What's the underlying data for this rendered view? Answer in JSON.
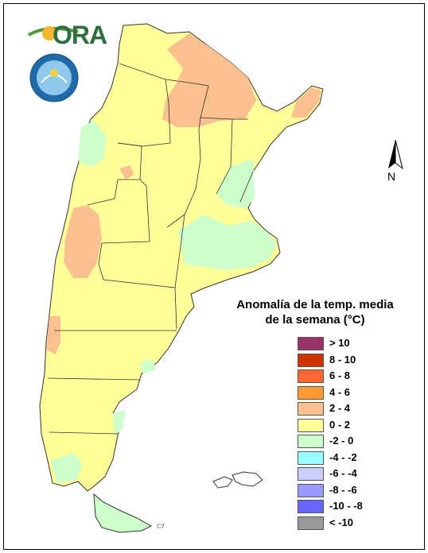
{
  "logo": {
    "text": "ORA"
  },
  "north_label": "N",
  "legend": {
    "title_line1": "Anomalía de la temp. media",
    "title_line2": "de la semana (°C)",
    "items": [
      {
        "label": "> 10",
        "color": "#993366"
      },
      {
        "label": "8 - 10",
        "color": "#cc3300"
      },
      {
        "label": "6 - 8",
        "color": "#ff6633"
      },
      {
        "label": "4 - 6",
        "color": "#ff9933"
      },
      {
        "label": "2 - 4",
        "color": "#fac090"
      },
      {
        "label": "0 - 2",
        "color": "#ffff99"
      },
      {
        "label": "-2 - 0",
        "color": "#ccffcc"
      },
      {
        "label": "-4 - -2",
        "color": "#99ffff"
      },
      {
        "label": "-6 - -4",
        "color": "#ccccff"
      },
      {
        "label": "-8 - -6",
        "color": "#9999ff"
      },
      {
        "label": "-10 - -8",
        "color": "#6666ff"
      },
      {
        "label": "< -10",
        "color": "#999999"
      }
    ]
  }
}
